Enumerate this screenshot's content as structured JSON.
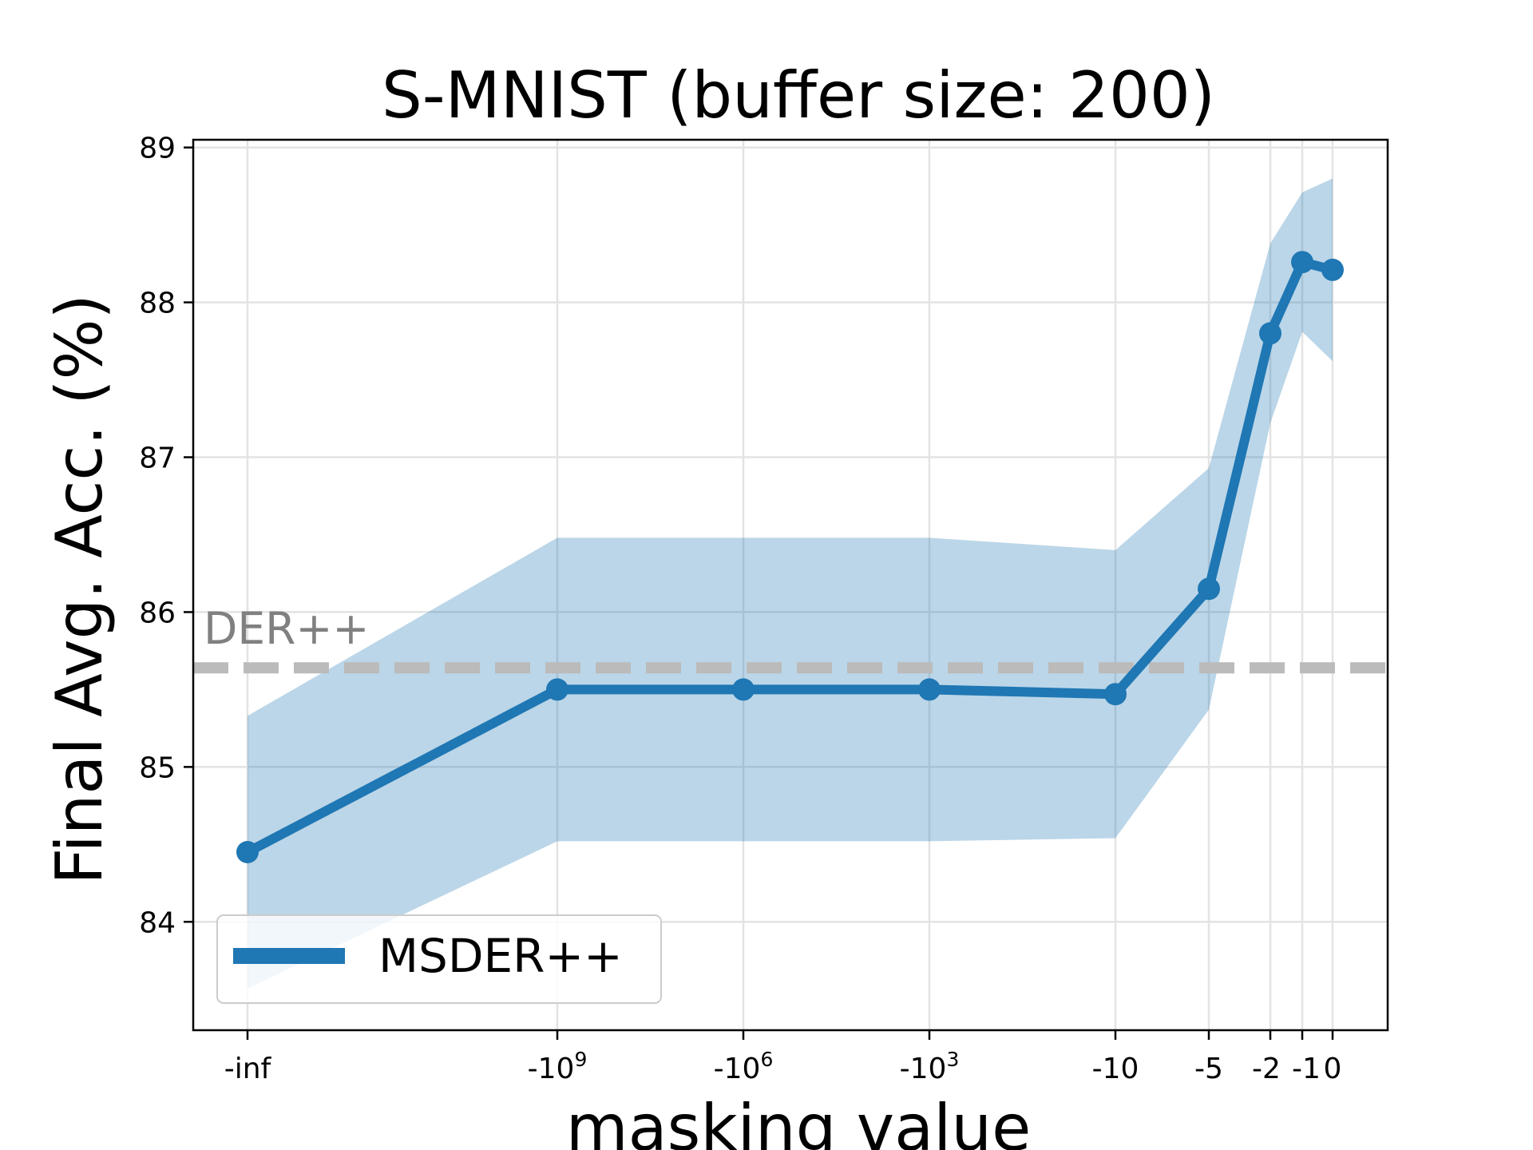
{
  "chart_data": {
    "type": "line",
    "title": "S-MNIST (buffer size: 200)",
    "xlabel": "masking value",
    "ylabel": "Final Avg. Acc. (%)",
    "x_ticks": [
      {
        "base": "-inf",
        "exp": ""
      },
      {
        "base": "-10",
        "exp": "9"
      },
      {
        "base": "-10",
        "exp": "6"
      },
      {
        "base": "-10",
        "exp": "3"
      },
      {
        "base": "-10",
        "exp": ""
      },
      {
        "base": "-5",
        "exp": ""
      },
      {
        "base": "-2",
        "exp": ""
      },
      {
        "base": "-1",
        "exp": ""
      },
      {
        "base": "0",
        "exp": ""
      }
    ],
    "y_ticks": [
      "84",
      "85",
      "86",
      "87",
      "88",
      "89"
    ],
    "ylim": [
      83.3,
      89.05
    ],
    "grid": true,
    "series": [
      {
        "name": "MSDER++",
        "color": "#1f77b4",
        "values": [
          84.45,
          85.5,
          85.5,
          85.5,
          85.47,
          86.15,
          87.8,
          88.26,
          88.21
        ],
        "upper": [
          85.33,
          86.48,
          86.48,
          86.48,
          86.4,
          86.93,
          88.38,
          88.71,
          88.8
        ],
        "lower": [
          83.57,
          84.52,
          84.52,
          84.52,
          84.54,
          85.37,
          87.22,
          87.81,
          87.62
        ]
      }
    ],
    "reference_line": {
      "label": "DER++",
      "value": 85.64,
      "color": "#bbbbbb",
      "style": "dashed"
    },
    "legend": {
      "location": "lower-left",
      "entries": [
        "MSDER++"
      ]
    }
  }
}
